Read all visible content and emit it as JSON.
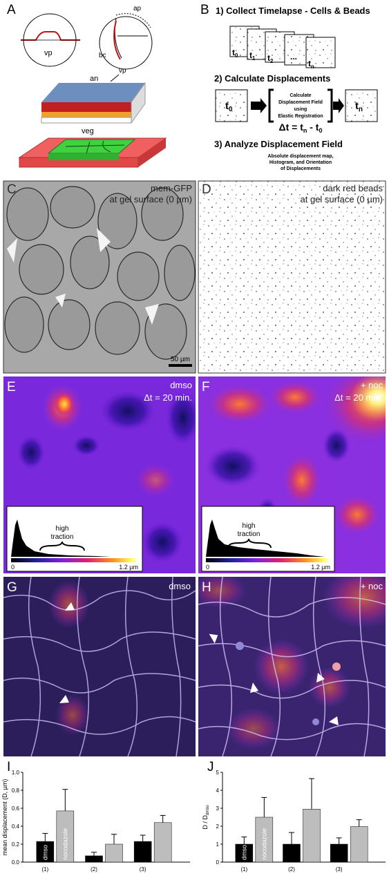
{
  "panel_labels": [
    "A",
    "B",
    "C",
    "D",
    "E",
    "F",
    "G",
    "H",
    "I",
    "J"
  ],
  "panel_a": {
    "labels": [
      "vp",
      "ap",
      "bc",
      "vp",
      "an",
      "veg"
    ]
  },
  "panel_b": {
    "steps": [
      "1) Collect Timelapse - Cells & Beads",
      "2) Calculate Displacements",
      "3) Analyze Displacement Field"
    ],
    "frames": [
      {
        "t": "t",
        "sub": "0"
      },
      {
        "t": "t",
        "sub": "1"
      },
      {
        "t": "t",
        "sub": "2"
      },
      {
        "t": "t",
        "sub": "n"
      }
    ],
    "ellipsis": "...",
    "process": [
      "Calculate",
      "Displacement Field",
      "using",
      "Elastic Registration"
    ],
    "big_frames": [
      {
        "t": "t",
        "sub": "0"
      },
      {
        "t": "t",
        "sub": "n"
      }
    ],
    "delta": [
      "Δt = t",
      "n",
      " - t",
      "0"
    ],
    "analysis": [
      "Absolute displacement map,",
      "Histogram, and Orientation",
      "of Displacements"
    ]
  },
  "panel_c": {
    "lines": [
      "mem-GFP",
      "at gel surface (0 µm)"
    ],
    "scale": "50 µm"
  },
  "panel_d": {
    "lines": [
      "dark red beads",
      "at gel surface (0 µm)"
    ]
  },
  "panel_e": {
    "lines": [
      "dmso",
      "Δt = 20 min."
    ],
    "inset": {
      "label": [
        "high",
        "traction"
      ],
      "min": "0",
      "max": "1.2 µm"
    }
  },
  "panel_f": {
    "lines": [
      "+ noc",
      "Δt = 20 min."
    ],
    "inset": {
      "label": [
        "high",
        "traction"
      ],
      "min": "0",
      "max": "1.2 µm"
    }
  },
  "panel_g": {
    "label": "dmso"
  },
  "panel_h": {
    "label": "+ noc"
  },
  "chart_data": [
    {
      "type": "bar",
      "y_label": "mean displacement (D, µm)",
      "categories": [
        "(1)",
        "(2)",
        "(3)"
      ],
      "series": [
        {
          "name": "dmso",
          "color": "#000000",
          "values": [
            0.23,
            0.07,
            0.23
          ],
          "errors": [
            0.09,
            0.04,
            0.07
          ]
        },
        {
          "name": "nocodazole",
          "color": "#bdbdbd",
          "values": [
            0.57,
            0.2,
            0.44
          ],
          "errors": [
            0.24,
            0.11,
            0.08
          ]
        }
      ],
      "ylim": [
        0,
        1
      ],
      "yticks": [
        {
          "value": 0,
          "label": "0.0"
        },
        0.2,
        0.4,
        0.6,
        0.8,
        {
          "value": 1,
          "label": "1.0"
        }
      ]
    },
    {
      "type": "bar",
      "y_label": "D / D",
      "y_label_sub": "dmso",
      "categories": [
        "(1)",
        "(2)",
        "(3)"
      ],
      "series": [
        {
          "name": "dmso",
          "color": "#000000",
          "values": [
            1,
            1,
            1
          ],
          "errors": [
            0.4,
            0.65,
            0.35
          ]
        },
        {
          "name": "nocodazole",
          "color": "#bdbdbd",
          "values": [
            2.5,
            2.95,
            1.98
          ],
          "errors": [
            1.1,
            1.7,
            0.38
          ]
        }
      ],
      "ylim": [
        0,
        5
      ],
      "yticks": [
        0,
        1,
        2,
        3,
        4,
        5
      ]
    }
  ]
}
